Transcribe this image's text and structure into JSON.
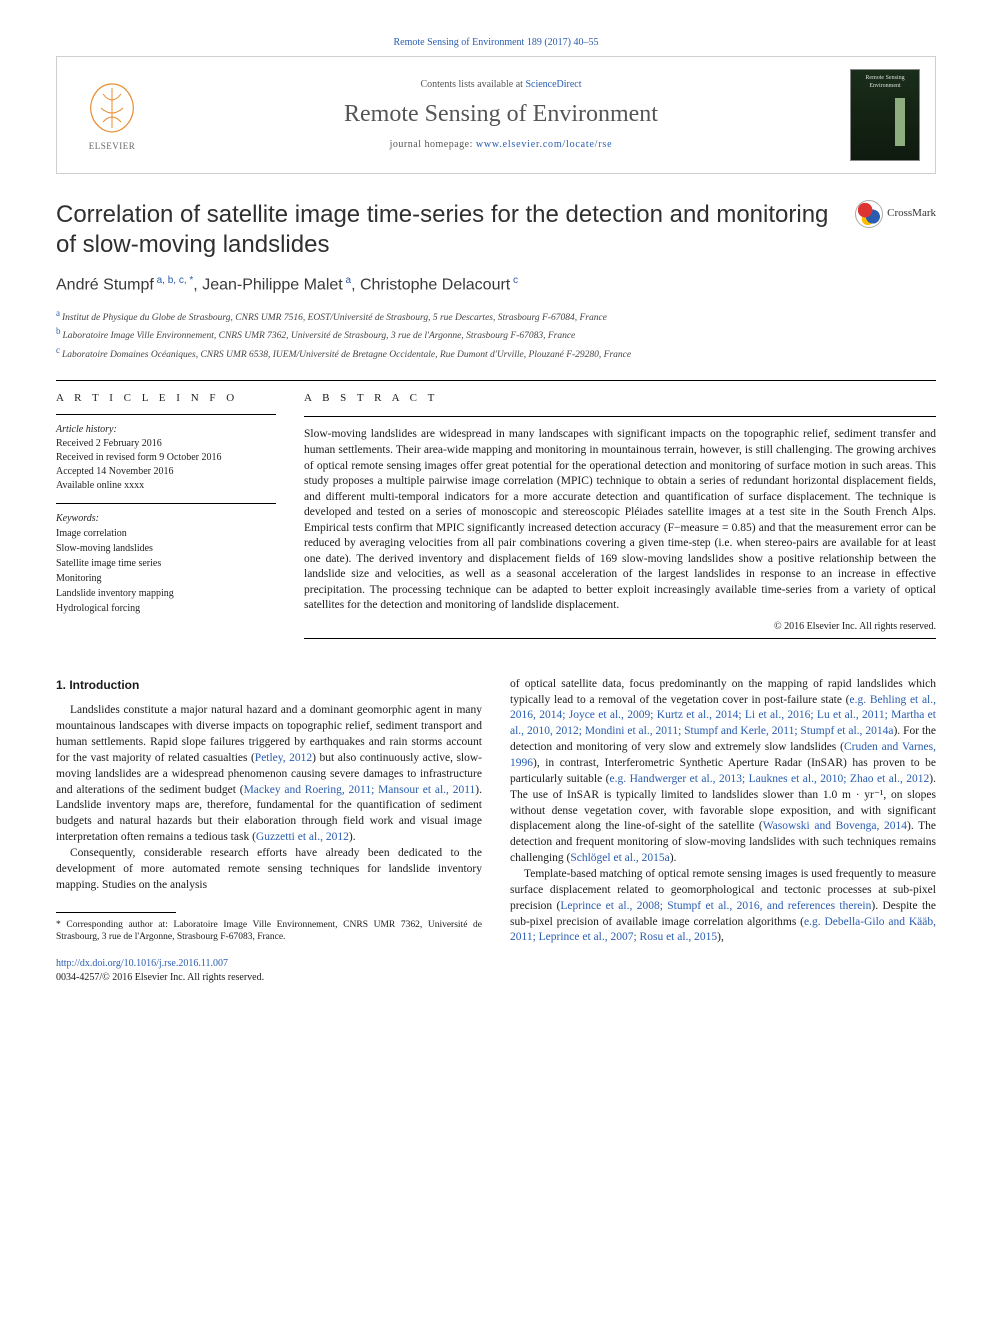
{
  "citation_line": "Remote Sensing of Environment 189 (2017) 40–55",
  "header": {
    "contents_prefix": "Contents lists available at ",
    "contents_link": "ScienceDirect",
    "journal": "Remote Sensing of Environment",
    "homepage_prefix": "journal homepage: ",
    "homepage_link": "www.elsevier.com/locate/rse",
    "publisher_label": "ELSEVIER",
    "cover_label": "Remote Sensing Environment"
  },
  "crossmark_label": "CrossMark",
  "title": "Correlation of satellite image time-series for the detection and monitoring of slow-moving landslides",
  "authors_html": "André Stumpf",
  "authors": [
    {
      "name": "André Stumpf",
      "sup": "a, b, c, *"
    },
    {
      "name": "Jean-Philippe Malet",
      "sup": "a"
    },
    {
      "name": "Christophe Delacourt",
      "sup": "c"
    }
  ],
  "author_sep": ", ",
  "affiliations": [
    {
      "lbl": "a",
      "text": "Institut de Physique du Globe de Strasbourg, CNRS UMR 7516, EOST/Université de Strasbourg, 5 rue Descartes, Strasbourg F-67084, France"
    },
    {
      "lbl": "b",
      "text": "Laboratoire Image Ville Environnement, CNRS UMR 7362, Université de Strasbourg, 3 rue de l'Argonne, Strasbourg F-67083, France"
    },
    {
      "lbl": "c",
      "text": "Laboratoire Domaines Océaniques, CNRS UMR 6538, IUEM/Université de Bretagne Occidentale, Rue Dumont d'Urville, Plouzané F-29280, France"
    }
  ],
  "article_info": {
    "heading": "A R T I C L E    I N F O",
    "history_label": "Article history:",
    "history": [
      "Received 2 February 2016",
      "Received in revised form 9 October 2016",
      "Accepted 14 November 2016",
      "Available online xxxx"
    ],
    "keywords_label": "Keywords:",
    "keywords": [
      "Image correlation",
      "Slow-moving landslides",
      "Satellite image time series",
      "Monitoring",
      "Landslide inventory mapping",
      "Hydrological forcing"
    ]
  },
  "abstract": {
    "heading": "A B S T R A C T",
    "text": "Slow-moving landslides are widespread in many landscapes with significant impacts on the topographic relief, sediment transfer and human settlements. Their area-wide mapping and monitoring in mountainous terrain, however, is still challenging. The growing archives of optical remote sensing images offer great potential for the operational detection and monitoring of surface motion in such areas. This study proposes a multiple pairwise image correlation (MPIC) technique to obtain a series of redundant horizontal displacement fields, and different multi-temporal indicators for a more accurate detection and quantification of surface displacement. The technique is developed and tested on a series of monoscopic and stereoscopic Pléiades satellite images at a test site in the South French Alps. Empirical tests confirm that MPIC significantly increased detection accuracy (F−measure = 0.85) and that the measurement error can be reduced by averaging velocities from all pair combinations covering a given time-step (i.e. when stereo-pairs are available for at least one date). The derived inventory and displacement fields of 169 slow-moving landslides show a positive relationship between the landslide size and velocities, as well as a seasonal acceleration of the largest landslides in response to an increase in effective precipitation. The processing technique can be adapted to better exploit increasingly available time-series from a variety of optical satellites for the detection and monitoring of landslide displacement.",
    "copyright": "© 2016 Elsevier Inc. All rights reserved."
  },
  "body": {
    "section_heading": "1. Introduction",
    "left": [
      "Landslides constitute a major natural hazard and a dominant geomorphic agent in many mountainous landscapes with diverse impacts on topographic relief, sediment transport and human settlements. Rapid slope failures triggered by earthquakes and rain storms account for the vast majority of related casualties (Petley, 2012) but also continuously active, slow-moving landslides are a widespread phenomenon causing severe damages to infrastructure and alterations of the sediment budget (Mackey and Roering, 2011; Mansour et al., 2011). Landslide inventory maps are, therefore, fundamental for the quantification of sediment budgets and natural hazards but their elaboration through field work and visual image interpretation often remains a tedious task (Guzzetti et al., 2012).",
      "Consequently, considerable research efforts have already been dedicated to the development of more automated remote sensing techniques for landslide inventory mapping. Studies on the analysis"
    ],
    "right": [
      "of optical satellite data, focus predominantly on the mapping of rapid landslides which typically lead to a removal of the vegetation cover in post-failure state (e.g. Behling et al., 2016, 2014; Joyce et al., 2009; Kurtz et al., 2014; Li et al., 2016; Lu et al., 2011; Martha et al., 2010, 2012; Mondini et al., 2011; Stumpf and Kerle, 2011; Stumpf et al., 2014a). For the detection and monitoring of very slow and extremely slow landslides (Cruden and Varnes, 1996), in contrast, Interferometric Synthetic Aperture Radar (InSAR) has proven to be particularly suitable (e.g. Handwerger et al., 2013; Lauknes et al., 2010; Zhao et al., 2012). The use of InSAR is typically limited to landslides slower than 1.0 m · yr⁻¹, on slopes without dense vegetation cover, with favorable slope exposition, and with significant displacement along the line-of-sight of the satellite (Wasowski and Bovenga, 2014). The detection and frequent monitoring of slow-moving landslides with such techniques remains challenging (Schlögel et al., 2015a).",
      "Template-based matching of optical remote sensing images is used frequently to measure surface displacement related to geomorphological and tectonic processes at sub-pixel precision (Leprince et al., 2008; Stumpf et al., 2016, and references therein). Despite the sub-pixel precision of available image correlation algorithms (e.g. Debella-Gilo and Kääb, 2011; Leprince et al., 2007; Rosu et al., 2015),"
    ]
  },
  "footnote": {
    "marker": "*",
    "text": "Corresponding author at: Laboratoire Image Ville Environnement, CNRS UMR 7362, Université de Strasbourg, 3 rue de l'Argonne, Strasbourg F-67083, France."
  },
  "doi": {
    "link": "http://dx.doi.org/10.1016/j.rse.2016.11.007",
    "issn_line": "0034-4257/© 2016 Elsevier Inc. All rights reserved."
  },
  "colors": {
    "link": "#2a5db0",
    "rule": "#000000",
    "text": "#1a1a1a"
  }
}
